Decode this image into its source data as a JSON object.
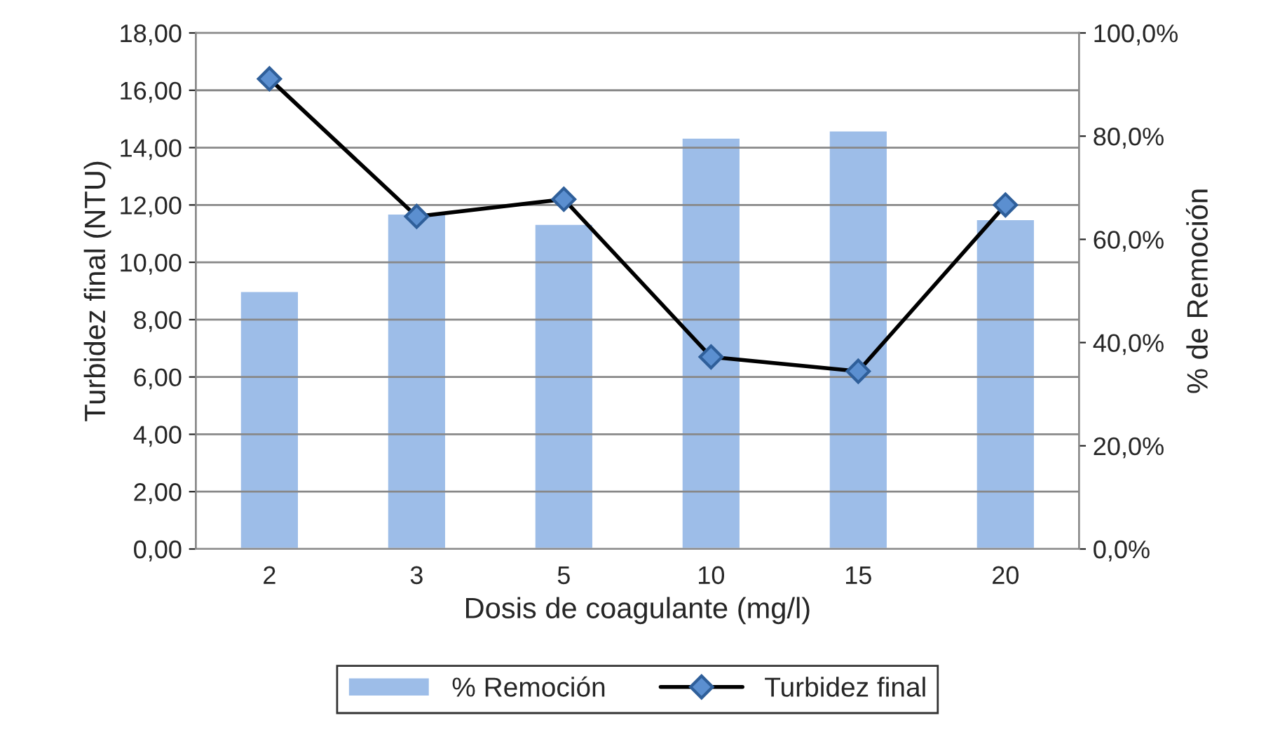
{
  "chart_data": {
    "type": "bar",
    "xlabel": "Dosis de coagulante (mg/l)",
    "ylabel": "Turbidez final (NTU)",
    "y2label": "% de Remoción",
    "categories": [
      "2",
      "3",
      "5",
      "10",
      "15",
      "20"
    ],
    "series": [
      {
        "name": "% Remoción",
        "axis": "y2",
        "color": "#9dbde8",
        "values": [
          50.0,
          65.0,
          63.0,
          79.7,
          81.1,
          63.9
        ]
      },
      {
        "name": "Turbidez final",
        "type": "line",
        "color": "#000000",
        "marker": "diamond",
        "values": [
          16.4,
          11.6,
          12.2,
          6.7,
          6.2,
          12.0
        ]
      }
    ],
    "ylim": [
      0,
      18
    ],
    "yticks": [
      {
        "value": 0,
        "label": "0,00"
      },
      {
        "value": 2,
        "label": "2,00"
      },
      {
        "value": 4,
        "label": "4,00"
      },
      {
        "value": 6,
        "label": "6,00"
      },
      {
        "value": 8,
        "label": "8,00"
      },
      {
        "value": 10,
        "label": "10,00"
      },
      {
        "value": 12,
        "label": "12,00"
      },
      {
        "value": 14,
        "label": "14,00"
      },
      {
        "value": 16,
        "label": "16,00"
      },
      {
        "value": 18,
        "label": "18,00"
      }
    ],
    "y2lim": [
      0,
      100
    ],
    "y2ticks": [
      {
        "value": 0,
        "label": "0,0%"
      },
      {
        "value": 20,
        "label": "20,0%"
      },
      {
        "value": 40,
        "label": "40,0%"
      },
      {
        "value": 60,
        "label": "60,0%"
      },
      {
        "value": 80,
        "label": "80,0%"
      },
      {
        "value": 100,
        "label": "100,0%"
      }
    ],
    "grid": "y",
    "legend": "bottom"
  }
}
